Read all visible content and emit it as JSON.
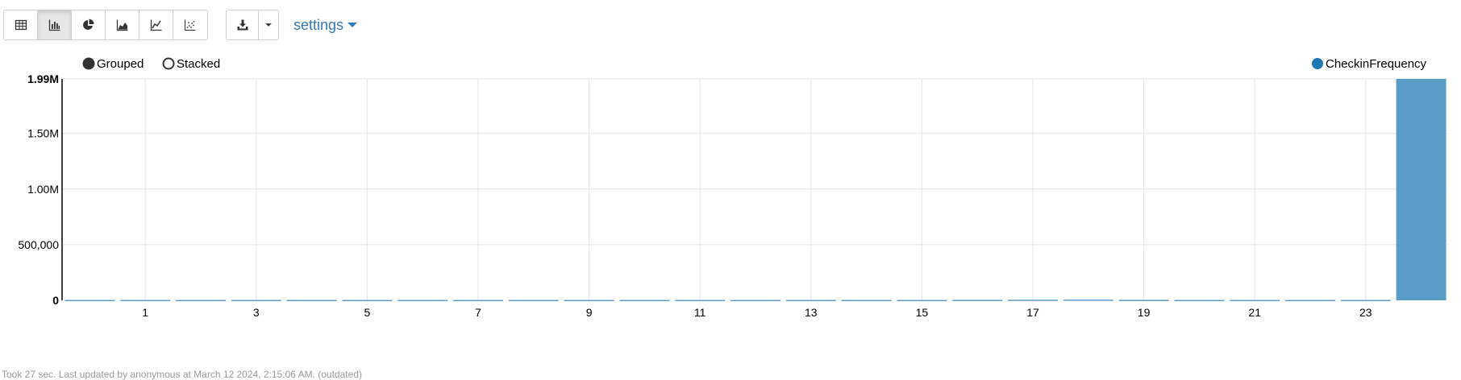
{
  "toolbar": {
    "buttons": [
      {
        "name": "table-view-button",
        "icon": "table-icon",
        "active": false
      },
      {
        "name": "bar-chart-button",
        "icon": "bar-chart-icon",
        "active": true
      },
      {
        "name": "pie-chart-button",
        "icon": "pie-chart-icon",
        "active": false
      },
      {
        "name": "area-chart-button",
        "icon": "area-chart-icon",
        "active": false
      },
      {
        "name": "line-chart-button",
        "icon": "line-chart-icon",
        "active": false
      },
      {
        "name": "scatter-chart-button",
        "icon": "scatter-chart-icon",
        "active": false
      }
    ],
    "download_icon": "download-icon",
    "settings_label": "settings"
  },
  "colors": {
    "bar": "#5b9bc8",
    "legend_series": "#1f77b4",
    "link": "#337ab7"
  },
  "chart_data": {
    "type": "bar",
    "mode_options": [
      {
        "label": "Grouped",
        "selected": true
      },
      {
        "label": "Stacked",
        "selected": false
      }
    ],
    "legend_position": "top-right",
    "series": [
      {
        "name": "CheckinFrequency",
        "values": [
          3000,
          3000,
          3000,
          3000,
          3000,
          3000,
          3000,
          3000,
          3000,
          3000,
          3000,
          3000,
          3000,
          3000,
          3000,
          3000,
          4000,
          5000,
          6000,
          4000,
          3000,
          3000,
          3000,
          3000,
          1990000
        ]
      }
    ],
    "x": [
      0,
      1,
      2,
      3,
      4,
      5,
      6,
      7,
      8,
      9,
      10,
      11,
      12,
      13,
      14,
      15,
      16,
      17,
      18,
      19,
      20,
      21,
      22,
      23,
      24
    ],
    "x_tick_labels": [
      "1",
      "3",
      "5",
      "7",
      "9",
      "11",
      "13",
      "15",
      "17",
      "19",
      "21",
      "23"
    ],
    "x_tick_values": [
      1,
      3,
      5,
      7,
      9,
      11,
      13,
      15,
      17,
      19,
      21,
      23
    ],
    "y_ticks": [
      {
        "value": 0,
        "label": "0"
      },
      {
        "value": 500000,
        "label": "500,000"
      },
      {
        "value": 1000000,
        "label": "1.00M"
      },
      {
        "value": 1500000,
        "label": "1.50M"
      },
      {
        "value": 1990000,
        "label": "1.99M"
      }
    ],
    "ylim": [
      0,
      1990000
    ],
    "grid": true
  },
  "footer": {
    "text": "Took 27 sec. Last updated by anonymous at March 12 2024, 2:15:06 AM. (outdated)"
  }
}
